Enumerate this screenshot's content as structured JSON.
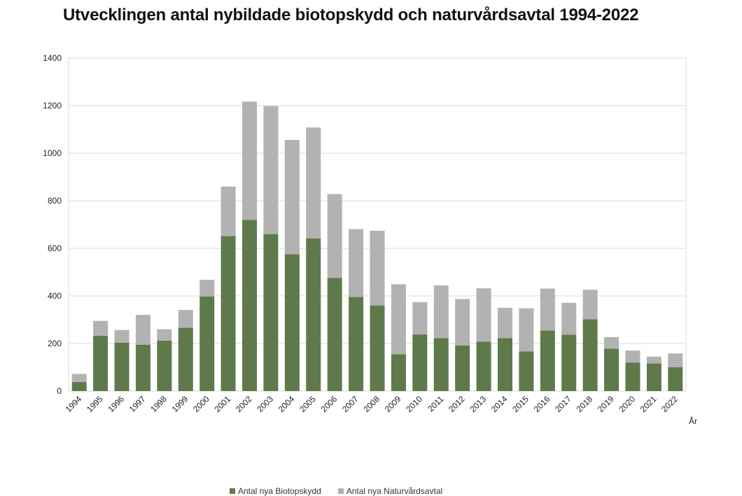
{
  "chart_data": {
    "type": "bar",
    "stacked": true,
    "title": "Utvecklingen antal nybildade biotopskydd och naturvårdsavtal 1994-2022",
    "xlabel": "År",
    "ylabel": "",
    "ylim": [
      0,
      1400
    ],
    "yticks": [
      0,
      200,
      400,
      600,
      800,
      1000,
      1200,
      1400
    ],
    "grid": true,
    "legend_position": "bottom",
    "categories": [
      "1994",
      "1995",
      "1996",
      "1997",
      "1998",
      "1999",
      "2000",
      "2001",
      "2002",
      "2003",
      "2004",
      "2005",
      "2006",
      "2007",
      "2008",
      "2009",
      "2010",
      "2011",
      "2012",
      "2013",
      "2014",
      "2015",
      "2016",
      "2017",
      "2018",
      "2019",
      "2020",
      "2021",
      "2022"
    ],
    "series": [
      {
        "name": "Antal nya Biotopskydd",
        "color": "#5f7a4a",
        "values": [
          38,
          233,
          203,
          195,
          212,
          266,
          398,
          652,
          720,
          660,
          575,
          642,
          476,
          396,
          360,
          155,
          238,
          222,
          192,
          208,
          223,
          167,
          255,
          237,
          302,
          178,
          120,
          116,
          100
        ]
      },
      {
        "name": "Antal nya Naturvårdsavtal",
        "color": "#b2b2b2",
        "values": [
          34,
          62,
          54,
          125,
          48,
          75,
          70,
          208,
          497,
          538,
          481,
          466,
          352,
          285,
          314,
          294,
          136,
          222,
          195,
          224,
          127,
          181,
          176,
          134,
          124,
          49,
          50,
          29,
          58
        ]
      }
    ]
  }
}
